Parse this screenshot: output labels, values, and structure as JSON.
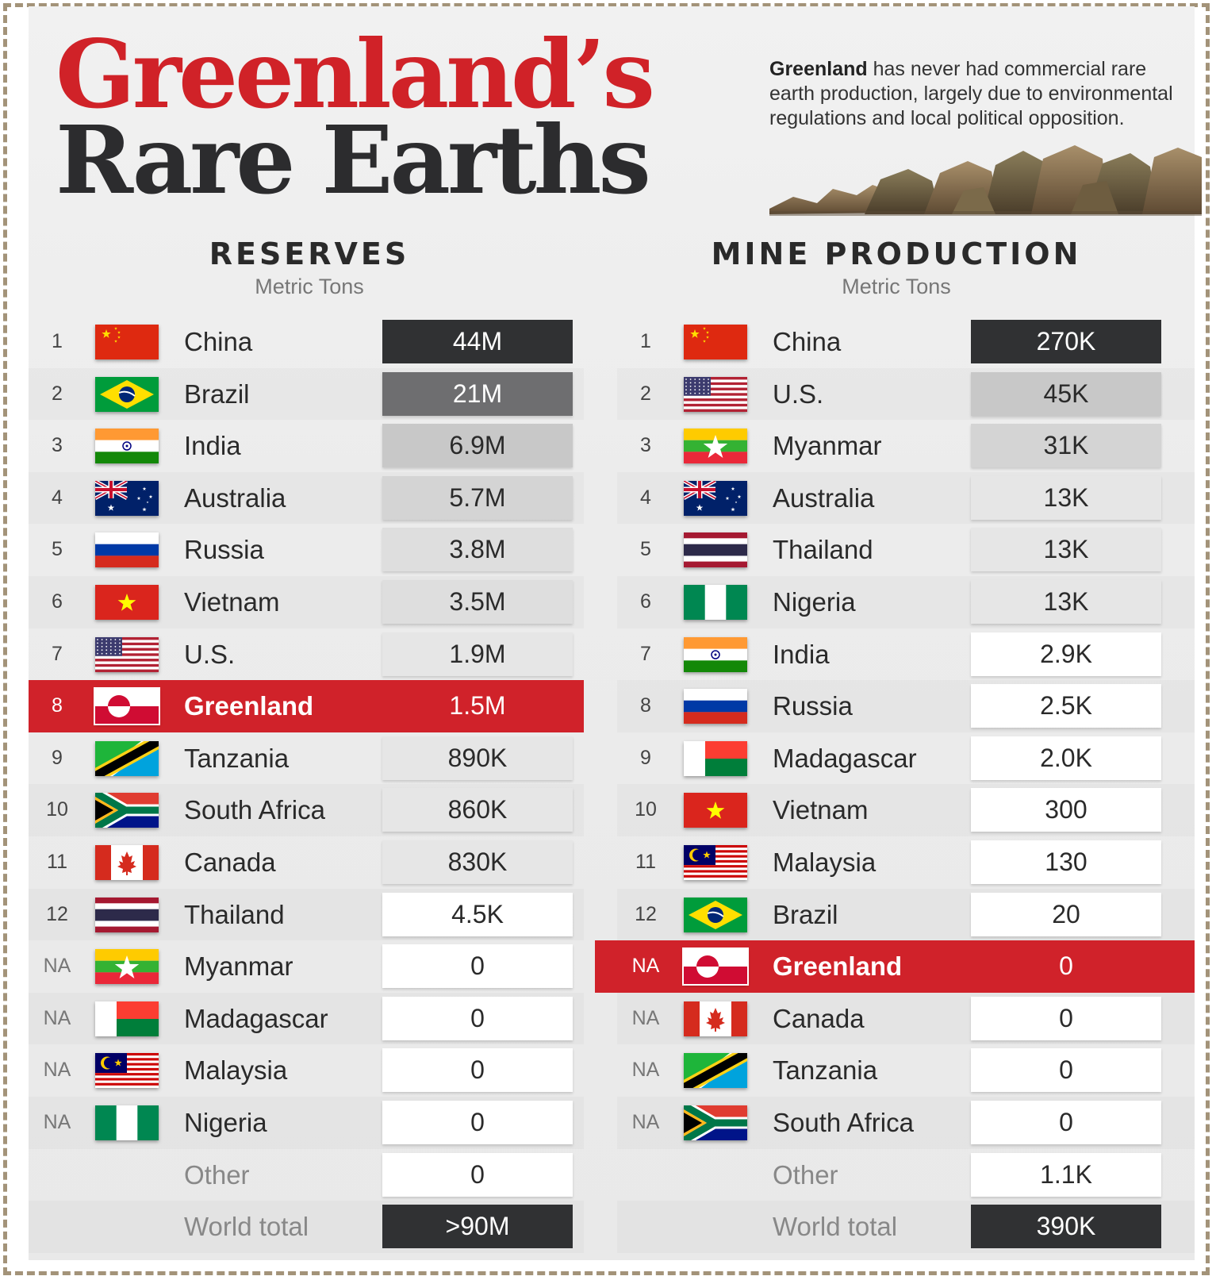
{
  "title_line1": "Greenland’s",
  "title_line2": "Rare Earths",
  "intro_bold": "Greenland",
  "intro_rest": " has never had commercial rare earth production, largely due to environmental regulations and local political opposition.",
  "reserves": {
    "heading": "RESERVES",
    "unit": "Metric Tons",
    "rows": [
      {
        "rank": "1",
        "flag": "china-flag",
        "country": "China",
        "value": "44M",
        "shade": "d"
      },
      {
        "rank": "2",
        "flag": "brazil-flag",
        "country": "Brazil",
        "value": "21M",
        "shade": "g1"
      },
      {
        "rank": "3",
        "flag": "india-flag",
        "country": "India",
        "value": "6.9M",
        "shade": "g2"
      },
      {
        "rank": "4",
        "flag": "australia-flag",
        "country": "Australia",
        "value": "5.7M",
        "shade": "g3"
      },
      {
        "rank": "5",
        "flag": "russia-flag",
        "country": "Russia",
        "value": "3.8M",
        "shade": "g4"
      },
      {
        "rank": "6",
        "flag": "vietnam-flag",
        "country": "Vietnam",
        "value": "3.5M",
        "shade": "g4"
      },
      {
        "rank": "7",
        "flag": "us-flag",
        "country": "U.S.",
        "value": "1.9M",
        "shade": "g5"
      },
      {
        "rank": "8",
        "flag": "greenland-flag",
        "country": "Greenland",
        "value": "1.5M",
        "shade": "hl"
      },
      {
        "rank": "9",
        "flag": "tanzania-flag",
        "country": "Tanzania",
        "value": "890K",
        "shade": "g5"
      },
      {
        "rank": "10",
        "flag": "south-africa-flag",
        "country": "South Africa",
        "value": "860K",
        "shade": "g5"
      },
      {
        "rank": "11",
        "flag": "canada-flag",
        "country": "Canada",
        "value": "830K",
        "shade": "g5"
      },
      {
        "rank": "12",
        "flag": "thailand-flag",
        "country": "Thailand",
        "value": "4.5K",
        "shade": "w"
      },
      {
        "rank": "NA",
        "flag": "myanmar-flag",
        "country": "Myanmar",
        "value": "0",
        "shade": "w"
      },
      {
        "rank": "NA",
        "flag": "madagascar-flag",
        "country": "Madagascar",
        "value": "0",
        "shade": "w"
      },
      {
        "rank": "NA",
        "flag": "malaysia-flag",
        "country": "Malaysia",
        "value": "0",
        "shade": "w"
      },
      {
        "rank": "NA",
        "flag": "nigeria-flag",
        "country": "Nigeria",
        "value": "0",
        "shade": "w"
      },
      {
        "rank": "",
        "flag": "",
        "country": "Other",
        "value": "0",
        "shade": "w"
      },
      {
        "rank": "",
        "flag": "",
        "country": "World total",
        "value": ">90M",
        "shade": "d"
      }
    ]
  },
  "production": {
    "heading": "MINE PRODUCTION",
    "unit": "Metric Tons",
    "rows": [
      {
        "rank": "1",
        "flag": "china-flag",
        "country": "China",
        "value": "270K",
        "shade": "d"
      },
      {
        "rank": "2",
        "flag": "us-flag",
        "country": "U.S.",
        "value": "45K",
        "shade": "g2"
      },
      {
        "rank": "3",
        "flag": "myanmar-flag",
        "country": "Myanmar",
        "value": "31K",
        "shade": "g3"
      },
      {
        "rank": "4",
        "flag": "australia-flag",
        "country": "Australia",
        "value": "13K",
        "shade": "g5"
      },
      {
        "rank": "5",
        "flag": "thailand-flag",
        "country": "Thailand",
        "value": "13K",
        "shade": "g5"
      },
      {
        "rank": "6",
        "flag": "nigeria-flag",
        "country": "Nigeria",
        "value": "13K",
        "shade": "g5"
      },
      {
        "rank": "7",
        "flag": "india-flag",
        "country": "India",
        "value": "2.9K",
        "shade": "w"
      },
      {
        "rank": "8",
        "flag": "russia-flag",
        "country": "Russia",
        "value": "2.5K",
        "shade": "w"
      },
      {
        "rank": "9",
        "flag": "madagascar-flag",
        "country": "Madagascar",
        "value": "2.0K",
        "shade": "w"
      },
      {
        "rank": "10",
        "flag": "vietnam-flag",
        "country": "Vietnam",
        "value": "300",
        "shade": "w"
      },
      {
        "rank": "11",
        "flag": "malaysia-flag",
        "country": "Malaysia",
        "value": "130",
        "shade": "w"
      },
      {
        "rank": "12",
        "flag": "brazil-flag",
        "country": "Brazil",
        "value": "20",
        "shade": "w"
      },
      {
        "rank": "NA",
        "flag": "greenland-flag",
        "country": "Greenland",
        "value": "0",
        "shade": "hl"
      },
      {
        "rank": "NA",
        "flag": "canada-flag",
        "country": "Canada",
        "value": "0",
        "shade": "w"
      },
      {
        "rank": "NA",
        "flag": "tanzania-flag",
        "country": "Tanzania",
        "value": "0",
        "shade": "w"
      },
      {
        "rank": "NA",
        "flag": "south-africa-flag",
        "country": "South Africa",
        "value": "0",
        "shade": "w"
      },
      {
        "rank": "",
        "flag": "",
        "country": "Other",
        "value": "1.1K",
        "shade": "w"
      },
      {
        "rank": "",
        "flag": "",
        "country": "World total",
        "value": "390K",
        "shade": "d"
      }
    ]
  }
}
